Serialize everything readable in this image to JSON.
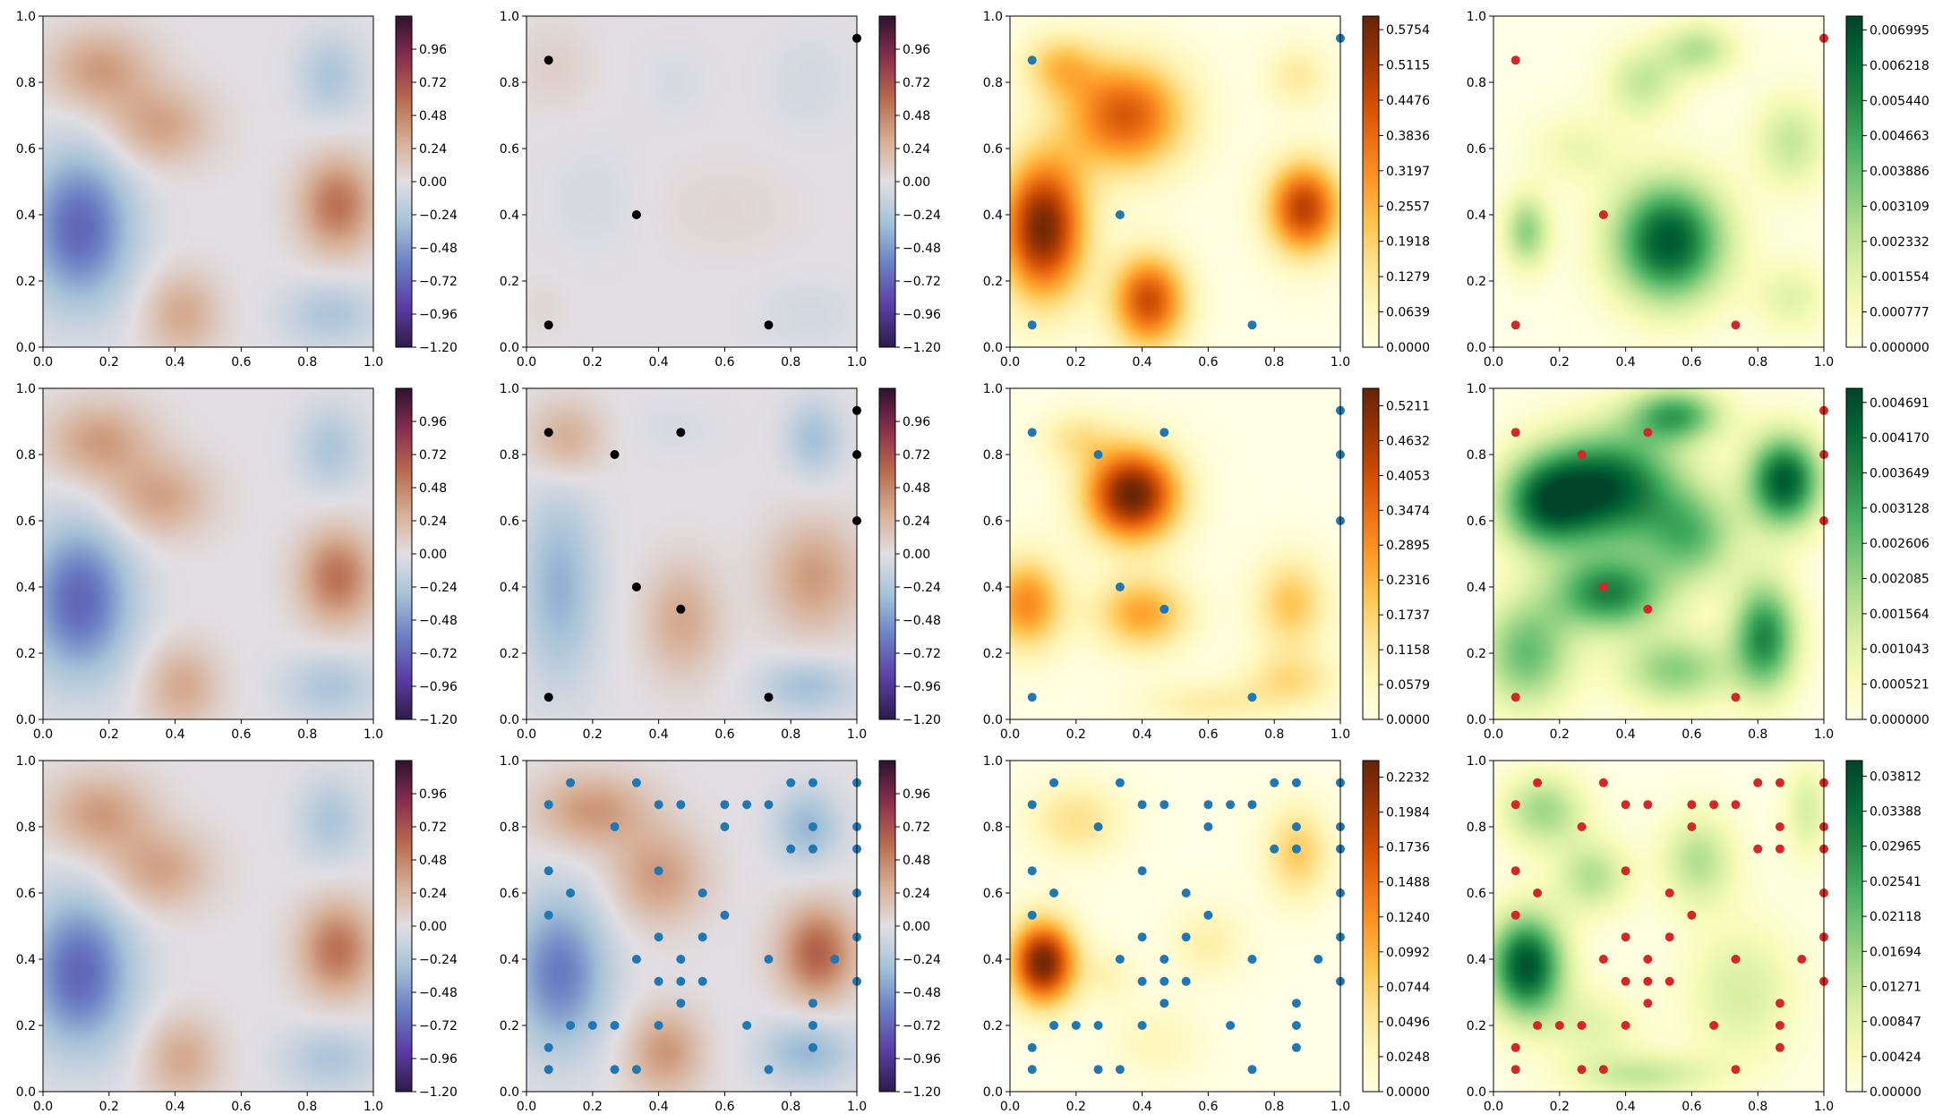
{
  "chart_data": {
    "type": "heatmap",
    "layout": {
      "rows": 3,
      "cols": 4
    },
    "axes": {
      "xlim": [
        0.0,
        1.0
      ],
      "ylim": [
        0.0,
        1.0
      ],
      "xticks": [
        "0.0",
        "0.2",
        "0.4",
        "0.6",
        "0.8",
        "1.0"
      ],
      "yticks": [
        "0.0",
        "0.2",
        "0.4",
        "0.6",
        "0.8",
        "1.0"
      ]
    },
    "colormaps": {
      "twilight_shifted": [
        "#2d1d49",
        "#5a3ea6",
        "#6a7fc3",
        "#a6c2d8",
        "#e2dfe3",
        "#d6ad93",
        "#b86b4e",
        "#8a2f4e",
        "#2e1330"
      ],
      "YlOrBr": [
        "#ffffe5",
        "#fff7bc",
        "#fee391",
        "#fec44f",
        "#fe9929",
        "#ec7014",
        "#cc4c02",
        "#993404",
        "#662506"
      ],
      "YlGn": [
        "#ffffe5",
        "#f7fcb9",
        "#d9f0a3",
        "#addd8e",
        "#78c679",
        "#41ab5d",
        "#238443",
        "#006837",
        "#004529"
      ]
    },
    "marker_colors": {
      "col2": "#000000",
      "col3": "#1f77b4",
      "col4": "#d62728"
    },
    "colorbars": {
      "twilight": [
        "0.96",
        "0.72",
        "0.48",
        "0.24",
        "0.00",
        "−0.24",
        "−0.48",
        "−0.72",
        "−0.96",
        "−1.20"
      ],
      "r1c3": [
        "0.5754",
        "0.5115",
        "0.4476",
        "0.3836",
        "0.3197",
        "0.2557",
        "0.1918",
        "0.1279",
        "0.0639",
        "0.0000"
      ],
      "r1c4": [
        "0.006995",
        "0.006218",
        "0.005440",
        "0.004663",
        "0.003886",
        "0.003109",
        "0.002332",
        "0.001554",
        "0.000777",
        "0.000000"
      ],
      "r2c3": [
        "0.5211",
        "0.4632",
        "0.4053",
        "0.3474",
        "0.2895",
        "0.2316",
        "0.1737",
        "0.1158",
        "0.0579",
        "0.0000"
      ],
      "r2c4": [
        "0.004691",
        "0.004170",
        "0.003649",
        "0.003128",
        "0.002606",
        "0.002085",
        "0.001564",
        "0.001043",
        "0.000521",
        "0.000000"
      ],
      "r3c3": [
        "0.2232",
        "0.1984",
        "0.1736",
        "0.1488",
        "0.1240",
        "0.0992",
        "0.0744",
        "0.0496",
        "0.0248",
        "0.0000"
      ],
      "r3c4": [
        "0.03812",
        "0.03388",
        "0.02965",
        "0.02541",
        "0.02118",
        "0.01694",
        "0.01271",
        "0.00847",
        "0.00424",
        "0.00000"
      ]
    },
    "sample_points": {
      "row1": [
        [
          0.067,
          0.867
        ],
        [
          1.0,
          0.933
        ],
        [
          0.333,
          0.4
        ],
        [
          0.067,
          0.067
        ],
        [
          0.733,
          0.067
        ]
      ],
      "row2": [
        [
          0.067,
          0.867
        ],
        [
          0.467,
          0.867
        ],
        [
          0.267,
          0.8
        ],
        [
          1.0,
          0.933
        ],
        [
          1.0,
          0.8
        ],
        [
          1.0,
          0.6
        ],
        [
          0.333,
          0.4
        ],
        [
          0.467,
          0.333
        ],
        [
          0.067,
          0.067
        ],
        [
          0.733,
          0.067
        ]
      ],
      "row3": [
        [
          0.133,
          0.933
        ],
        [
          0.333,
          0.933
        ],
        [
          0.8,
          0.933
        ],
        [
          0.867,
          0.933
        ],
        [
          1.0,
          0.933
        ],
        [
          0.067,
          0.867
        ],
        [
          0.4,
          0.867
        ],
        [
          0.467,
          0.867
        ],
        [
          0.6,
          0.867
        ],
        [
          0.667,
          0.867
        ],
        [
          0.733,
          0.867
        ],
        [
          0.267,
          0.8
        ],
        [
          0.6,
          0.8
        ],
        [
          0.867,
          0.8
        ],
        [
          1.0,
          0.8
        ],
        [
          0.8,
          0.733
        ],
        [
          0.867,
          0.733
        ],
        [
          1.0,
          0.733
        ],
        [
          0.067,
          0.667
        ],
        [
          0.4,
          0.667
        ],
        [
          0.133,
          0.6
        ],
        [
          0.533,
          0.6
        ],
        [
          1.0,
          0.6
        ],
        [
          0.067,
          0.533
        ],
        [
          0.6,
          0.533
        ],
        [
          0.4,
          0.467
        ],
        [
          0.533,
          0.467
        ],
        [
          1.0,
          0.467
        ],
        [
          0.333,
          0.4
        ],
        [
          0.467,
          0.4
        ],
        [
          0.733,
          0.4
        ],
        [
          0.933,
          0.4
        ],
        [
          0.4,
          0.333
        ],
        [
          0.467,
          0.333
        ],
        [
          0.533,
          0.333
        ],
        [
          1.0,
          0.333
        ],
        [
          0.467,
          0.267
        ],
        [
          0.867,
          0.267
        ],
        [
          0.133,
          0.2
        ],
        [
          0.2,
          0.2
        ],
        [
          0.267,
          0.2
        ],
        [
          0.4,
          0.2
        ],
        [
          0.667,
          0.2
        ],
        [
          0.867,
          0.2
        ],
        [
          0.067,
          0.133
        ],
        [
          0.867,
          0.133
        ],
        [
          0.067,
          0.067
        ],
        [
          0.267,
          0.067
        ],
        [
          0.333,
          0.067
        ],
        [
          0.733,
          0.067
        ]
      ]
    },
    "reference_field": [
      {
        "x": 0.11,
        "y": 0.36,
        "amp": -0.72,
        "sx": 0.11,
        "sy": 0.16
      },
      {
        "x": 0.17,
        "y": 0.84,
        "amp": 0.38,
        "sx": 0.11,
        "sy": 0.085
      },
      {
        "x": 0.35,
        "y": 0.67,
        "amp": 0.35,
        "sx": 0.11,
        "sy": 0.085
      },
      {
        "x": 0.42,
        "y": 0.1,
        "amp": 0.32,
        "sx": 0.08,
        "sy": 0.09
      },
      {
        "x": 0.89,
        "y": 0.43,
        "amp": 0.57,
        "sx": 0.08,
        "sy": 0.1
      },
      {
        "x": 0.87,
        "y": 0.82,
        "amp": -0.26,
        "sx": 0.07,
        "sy": 0.09
      },
      {
        "x": 0.87,
        "y": 0.1,
        "amp": -0.26,
        "sx": 0.1,
        "sy": 0.07
      }
    ],
    "panels": [
      {
        "row": 1,
        "col": 1,
        "type": "heatmap",
        "cmap": "twilight_shifted",
        "vmin": -1.2,
        "vmax": 1.2,
        "colorbar": "twilight",
        "field": "reference"
      },
      {
        "row": 1,
        "col": 2,
        "type": "heatmap",
        "cmap": "twilight_shifted",
        "vmin": -1.2,
        "vmax": 1.2,
        "colorbar": "twilight",
        "points": "row1",
        "marker": "col2",
        "blobs": [
          {
            "x": 0.08,
            "y": 0.85,
            "amp": 0.1,
            "sx": 0.08,
            "sy": 0.09
          },
          {
            "x": 0.2,
            "y": 0.45,
            "amp": -0.06,
            "sx": 0.1,
            "sy": 0.12
          },
          {
            "x": 0.6,
            "y": 0.42,
            "amp": 0.06,
            "sx": 0.15,
            "sy": 0.1
          },
          {
            "x": 0.85,
            "y": 0.8,
            "amp": -0.08,
            "sx": 0.08,
            "sy": 0.1
          },
          {
            "x": 0.85,
            "y": 0.1,
            "amp": -0.08,
            "sx": 0.1,
            "sy": 0.07
          },
          {
            "x": 0.45,
            "y": 0.8,
            "amp": -0.05,
            "sx": 0.07,
            "sy": 0.08
          },
          {
            "x": 0.05,
            "y": 0.12,
            "amp": 0.05,
            "sx": 0.05,
            "sy": 0.06
          }
        ]
      },
      {
        "row": 1,
        "col": 3,
        "type": "heatmap",
        "cmap": "YlOrBr",
        "vmin": 0,
        "vmax": 0.6,
        "colorbar": "r1c3",
        "points": "row1",
        "marker": "col3",
        "blobs": [
          {
            "x": 0.1,
            "y": 0.36,
            "amp": 0.58,
            "sx": 0.09,
            "sy": 0.15
          },
          {
            "x": 0.35,
            "y": 0.7,
            "amp": 0.42,
            "sx": 0.13,
            "sy": 0.12
          },
          {
            "x": 0.42,
            "y": 0.14,
            "amp": 0.45,
            "sx": 0.08,
            "sy": 0.1
          },
          {
            "x": 0.89,
            "y": 0.42,
            "amp": 0.48,
            "sx": 0.08,
            "sy": 0.1
          },
          {
            "x": 0.15,
            "y": 0.85,
            "amp": 0.2,
            "sx": 0.08,
            "sy": 0.07
          },
          {
            "x": 0.87,
            "y": 0.82,
            "amp": 0.12,
            "sx": 0.07,
            "sy": 0.07
          }
        ]
      },
      {
        "row": 1,
        "col": 4,
        "type": "heatmap",
        "cmap": "YlGn",
        "vmin": 0,
        "vmax": 0.0073,
        "colorbar": "r1c4",
        "points": "row1",
        "marker": "col4",
        "blobs": [
          {
            "x": 0.53,
            "y": 0.32,
            "amp": 0.0068,
            "sx": 0.12,
            "sy": 0.13
          },
          {
            "x": 0.1,
            "y": 0.35,
            "amp": 0.0032,
            "sx": 0.05,
            "sy": 0.08
          },
          {
            "x": 0.45,
            "y": 0.8,
            "amp": 0.0022,
            "sx": 0.08,
            "sy": 0.08
          },
          {
            "x": 0.62,
            "y": 0.9,
            "amp": 0.0025,
            "sx": 0.08,
            "sy": 0.06
          },
          {
            "x": 0.9,
            "y": 0.62,
            "amp": 0.0022,
            "sx": 0.08,
            "sy": 0.1
          },
          {
            "x": 0.25,
            "y": 0.6,
            "amp": 0.0012,
            "sx": 0.1,
            "sy": 0.08
          },
          {
            "x": 0.9,
            "y": 0.15,
            "amp": 0.0015,
            "sx": 0.08,
            "sy": 0.08
          }
        ]
      },
      {
        "row": 2,
        "col": 1,
        "type": "heatmap",
        "cmap": "twilight_shifted",
        "vmin": -1.2,
        "vmax": 1.2,
        "colorbar": "twilight",
        "field": "reference"
      },
      {
        "row": 2,
        "col": 2,
        "type": "heatmap",
        "cmap": "twilight_shifted",
        "vmin": -1.2,
        "vmax": 1.2,
        "colorbar": "twilight",
        "points": "row2",
        "marker": "col2",
        "blobs": [
          {
            "x": 0.1,
            "y": 0.4,
            "amp": -0.38,
            "sx": 0.08,
            "sy": 0.2
          },
          {
            "x": 0.12,
            "y": 0.85,
            "amp": 0.3,
            "sx": 0.08,
            "sy": 0.08
          },
          {
            "x": 0.47,
            "y": 0.3,
            "amp": 0.32,
            "sx": 0.08,
            "sy": 0.12
          },
          {
            "x": 0.87,
            "y": 0.43,
            "amp": 0.38,
            "sx": 0.1,
            "sy": 0.12
          },
          {
            "x": 0.87,
            "y": 0.85,
            "amp": -0.3,
            "sx": 0.06,
            "sy": 0.08
          },
          {
            "x": 0.85,
            "y": 0.1,
            "amp": -0.3,
            "sx": 0.1,
            "sy": 0.06
          },
          {
            "x": 0.45,
            "y": 0.88,
            "amp": -0.05,
            "sx": 0.1,
            "sy": 0.06
          }
        ]
      },
      {
        "row": 2,
        "col": 3,
        "type": "heatmap",
        "cmap": "YlOrBr",
        "vmin": 0,
        "vmax": 0.55,
        "colorbar": "r2c3",
        "points": "row2",
        "marker": "col3",
        "blobs": [
          {
            "x": 0.37,
            "y": 0.68,
            "amp": 0.55,
            "sx": 0.1,
            "sy": 0.1
          },
          {
            "x": 0.05,
            "y": 0.35,
            "amp": 0.3,
            "sx": 0.08,
            "sy": 0.1
          },
          {
            "x": 0.4,
            "y": 0.32,
            "amp": 0.26,
            "sx": 0.1,
            "sy": 0.08
          },
          {
            "x": 0.85,
            "y": 0.35,
            "amp": 0.2,
            "sx": 0.08,
            "sy": 0.1
          },
          {
            "x": 0.85,
            "y": 0.12,
            "amp": 0.14,
            "sx": 0.1,
            "sy": 0.06
          },
          {
            "x": 0.2,
            "y": 0.85,
            "amp": 0.12,
            "sx": 0.08,
            "sy": 0.06
          },
          {
            "x": 0.6,
            "y": 0.05,
            "amp": 0.1,
            "sx": 0.15,
            "sy": 0.05
          }
        ]
      },
      {
        "row": 2,
        "col": 4,
        "type": "heatmap",
        "cmap": "YlGn",
        "vmin": 0,
        "vmax": 0.0049,
        "colorbar": "r2c4",
        "points": "row2",
        "marker": "col4",
        "blobs": [
          {
            "x": 0.35,
            "y": 0.7,
            "amp": 0.0045,
            "sx": 0.15,
            "sy": 0.12
          },
          {
            "x": 0.88,
            "y": 0.72,
            "amp": 0.0045,
            "sx": 0.08,
            "sy": 0.1
          },
          {
            "x": 0.15,
            "y": 0.65,
            "amp": 0.0032,
            "sx": 0.1,
            "sy": 0.1
          },
          {
            "x": 0.35,
            "y": 0.38,
            "amp": 0.0036,
            "sx": 0.12,
            "sy": 0.08
          },
          {
            "x": 0.82,
            "y": 0.25,
            "amp": 0.0036,
            "sx": 0.07,
            "sy": 0.12
          },
          {
            "x": 0.1,
            "y": 0.2,
            "amp": 0.0026,
            "sx": 0.1,
            "sy": 0.12
          },
          {
            "x": 0.55,
            "y": 0.15,
            "amp": 0.0022,
            "sx": 0.12,
            "sy": 0.08
          },
          {
            "x": 0.6,
            "y": 0.55,
            "amp": 0.0024,
            "sx": 0.1,
            "sy": 0.1
          },
          {
            "x": 0.55,
            "y": 0.92,
            "amp": 0.003,
            "sx": 0.1,
            "sy": 0.06
          }
        ]
      },
      {
        "row": 3,
        "col": 1,
        "type": "heatmap",
        "cmap": "twilight_shifted",
        "vmin": -1.2,
        "vmax": 1.2,
        "colorbar": "twilight",
        "field": "reference"
      },
      {
        "row": 3,
        "col": 2,
        "type": "heatmap",
        "cmap": "twilight_shifted",
        "vmin": -1.2,
        "vmax": 1.2,
        "colorbar": "twilight",
        "points": "row3",
        "marker": "col3",
        "blobs": [
          {
            "x": 0.1,
            "y": 0.36,
            "amp": -0.62,
            "sx": 0.1,
            "sy": 0.16
          },
          {
            "x": 0.2,
            "y": 0.85,
            "amp": 0.4,
            "sx": 0.12,
            "sy": 0.08
          },
          {
            "x": 0.4,
            "y": 0.65,
            "amp": 0.38,
            "sx": 0.1,
            "sy": 0.1
          },
          {
            "x": 0.42,
            "y": 0.12,
            "amp": 0.4,
            "sx": 0.08,
            "sy": 0.09
          },
          {
            "x": 0.88,
            "y": 0.42,
            "amp": 0.65,
            "sx": 0.08,
            "sy": 0.1
          },
          {
            "x": 0.85,
            "y": 0.8,
            "amp": -0.35,
            "sx": 0.07,
            "sy": 0.08
          },
          {
            "x": 0.85,
            "y": 0.12,
            "amp": -0.35,
            "sx": 0.1,
            "sy": 0.07
          }
        ]
      },
      {
        "row": 3,
        "col": 3,
        "type": "heatmap",
        "cmap": "YlOrBr",
        "vmin": 0,
        "vmax": 0.235,
        "colorbar": "r3c3",
        "points": "row3",
        "marker": "col3",
        "blobs": [
          {
            "x": 0.1,
            "y": 0.39,
            "amp": 0.23,
            "sx": 0.07,
            "sy": 0.09
          },
          {
            "x": 0.2,
            "y": 0.82,
            "amp": 0.06,
            "sx": 0.1,
            "sy": 0.08
          },
          {
            "x": 0.87,
            "y": 0.72,
            "amp": 0.08,
            "sx": 0.07,
            "sy": 0.1
          },
          {
            "x": 0.6,
            "y": 0.45,
            "amp": 0.04,
            "sx": 0.08,
            "sy": 0.08
          },
          {
            "x": 0.45,
            "y": 0.15,
            "amp": 0.03,
            "sx": 0.1,
            "sy": 0.08
          },
          {
            "x": 0.3,
            "y": 0.35,
            "amp": 0.03,
            "sx": 0.06,
            "sy": 0.06
          }
        ]
      },
      {
        "row": 3,
        "col": 4,
        "type": "heatmap",
        "cmap": "YlGn",
        "vmin": 0,
        "vmax": 0.04,
        "colorbar": "r3c4",
        "points": "row3",
        "marker": "col4",
        "blobs": [
          {
            "x": 0.1,
            "y": 0.38,
            "amp": 0.038,
            "sx": 0.08,
            "sy": 0.11
          },
          {
            "x": 0.15,
            "y": 0.85,
            "amp": 0.016,
            "sx": 0.09,
            "sy": 0.08
          },
          {
            "x": 0.3,
            "y": 0.65,
            "amp": 0.014,
            "sx": 0.08,
            "sy": 0.08
          },
          {
            "x": 0.62,
            "y": 0.7,
            "amp": 0.014,
            "sx": 0.08,
            "sy": 0.1
          },
          {
            "x": 0.75,
            "y": 0.3,
            "amp": 0.01,
            "sx": 0.12,
            "sy": 0.15
          },
          {
            "x": 0.45,
            "y": 0.05,
            "amp": 0.012,
            "sx": 0.15,
            "sy": 0.05
          },
          {
            "x": 0.95,
            "y": 0.85,
            "amp": 0.01,
            "sx": 0.05,
            "sy": 0.1
          },
          {
            "x": 0.3,
            "y": 0.2,
            "amp": 0.008,
            "sx": 0.1,
            "sy": 0.08
          }
        ]
      }
    ]
  }
}
